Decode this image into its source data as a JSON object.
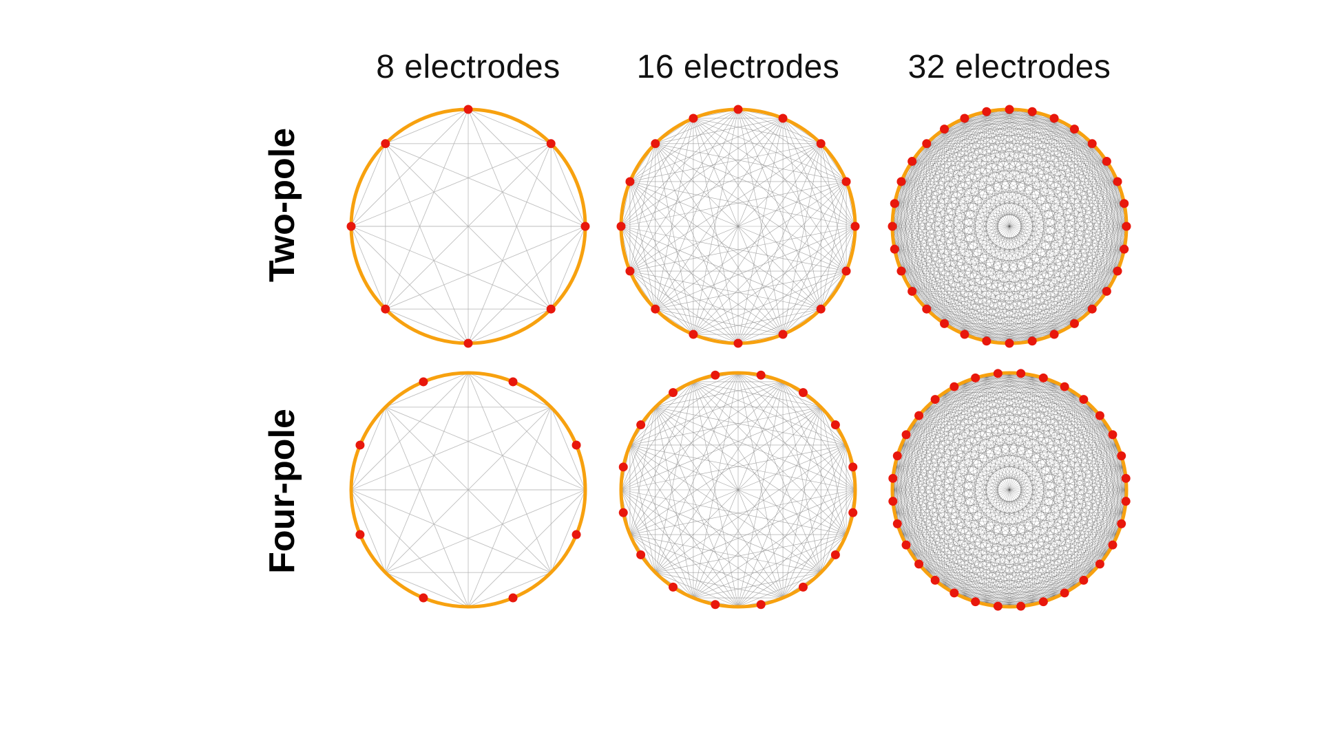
{
  "columns": [
    {
      "label": "8 electrodes",
      "electrodes": 8
    },
    {
      "label": "16 electrodes",
      "electrodes": 16
    },
    {
      "label": "32 electrodes",
      "electrodes": 32
    }
  ],
  "rows": [
    {
      "label": "Two-pole",
      "mode": "two-pole"
    },
    {
      "label": "Four-pole",
      "mode": "four-pole"
    }
  ],
  "colors": {
    "ring": "#F7A10F",
    "electrode": "#E8170C",
    "chord_light": "#B3B3B3",
    "chord_dark": "#444444",
    "background": "#FFFFFF"
  }
}
